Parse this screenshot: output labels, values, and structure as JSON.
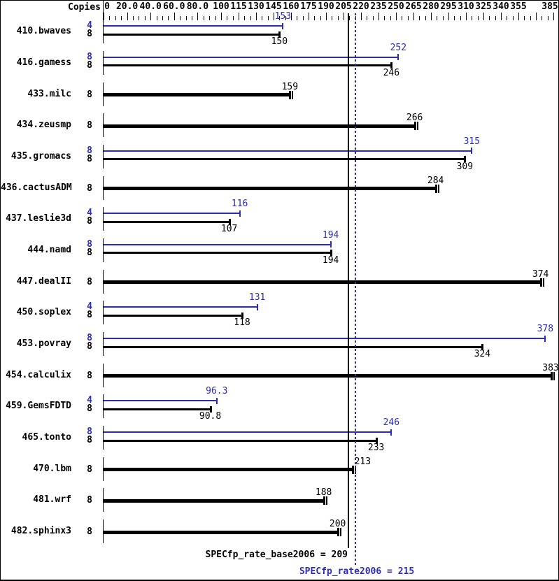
{
  "colors": {
    "peak": "#2d2db4",
    "base": "#000000",
    "background": "#ffffff",
    "border": "#000000"
  },
  "header": {
    "copies_label": "Copies"
  },
  "summary": {
    "base_text": "SPECfp_rate_base2006 = 209",
    "peak_text": "SPECfp_rate2006 = 215"
  },
  "chart_data": {
    "type": "bar",
    "orientation": "horizontal",
    "ylabel": "Copies",
    "x_axis": {
      "range": [
        0,
        385
      ],
      "scale_note": "piecewise: 0-100 compressed, above 100 majors every 15",
      "major_ticks": [
        {
          "v": 0,
          "label": "0"
        },
        {
          "v": 20,
          "label": "20.0"
        },
        {
          "v": 40,
          "label": "40.0"
        },
        {
          "v": 60,
          "label": "60.0"
        },
        {
          "v": 80,
          "label": "80.0"
        },
        {
          "v": 100,
          "label": "100"
        },
        {
          "v": 115,
          "label": "115"
        },
        {
          "v": 130,
          "label": "130"
        },
        {
          "v": 145,
          "label": "145"
        },
        {
          "v": 160,
          "label": "160"
        },
        {
          "v": 175,
          "label": "175"
        },
        {
          "v": 190,
          "label": "190"
        },
        {
          "v": 205,
          "label": "205"
        },
        {
          "v": 220,
          "label": "220"
        },
        {
          "v": 235,
          "label": "235"
        },
        {
          "v": 250,
          "label": "250"
        },
        {
          "v": 265,
          "label": "265"
        },
        {
          "v": 280,
          "label": "280"
        },
        {
          "v": 295,
          "label": "295"
        },
        {
          "v": 310,
          "label": "310"
        },
        {
          "v": 325,
          "label": "325"
        },
        {
          "v": 340,
          "label": "340"
        },
        {
          "v": 355,
          "label": "355"
        },
        {
          "v": 370,
          "label": ""
        },
        {
          "v": 385,
          "label": "385"
        }
      ],
      "minor_tick_step": 5
    },
    "reference_lines": [
      {
        "name": "SPECfp_rate_base2006",
        "value": 209,
        "style": "solid",
        "color": "#000000"
      },
      {
        "name": "SPECfp_rate2006",
        "value": 215,
        "style": "dotted",
        "color": "#2d2db4"
      }
    ],
    "means": {
      "SPECfp_rate_base2006": 209,
      "SPECfp_rate2006": 215
    },
    "rows": [
      {
        "name": "410.bwaves",
        "bars": [
          {
            "kind": "peak",
            "copies": "4",
            "value": 153,
            "label": "153"
          },
          {
            "kind": "base",
            "copies": "8",
            "value": 150,
            "label": "150"
          }
        ]
      },
      {
        "name": "416.gamess",
        "bars": [
          {
            "kind": "peak",
            "copies": "8",
            "value": 252,
            "label": "252"
          },
          {
            "kind": "base",
            "copies": "8",
            "value": 246,
            "label": "246"
          }
        ]
      },
      {
        "name": "433.milc",
        "bars": [
          {
            "kind": "single",
            "copies": "8",
            "value": 159,
            "label": "159"
          }
        ]
      },
      {
        "name": "434.zeusmp",
        "bars": [
          {
            "kind": "single",
            "copies": "8",
            "value": 266,
            "label": "266"
          }
        ]
      },
      {
        "name": "435.gromacs",
        "bars": [
          {
            "kind": "peak",
            "copies": "8",
            "value": 315,
            "label": "315"
          },
          {
            "kind": "base",
            "copies": "8",
            "value": 309,
            "label": "309"
          }
        ]
      },
      {
        "name": "436.cactusADM",
        "bars": [
          {
            "kind": "single",
            "copies": "8",
            "value": 284,
            "label": "284"
          }
        ]
      },
      {
        "name": "437.leslie3d",
        "bars": [
          {
            "kind": "peak",
            "copies": "4",
            "value": 116,
            "label": "116"
          },
          {
            "kind": "base",
            "copies": "8",
            "value": 107,
            "label": "107"
          }
        ]
      },
      {
        "name": "444.namd",
        "bars": [
          {
            "kind": "peak",
            "copies": "8",
            "value": 194,
            "label": "194"
          },
          {
            "kind": "base",
            "copies": "8",
            "value": 194,
            "label": "194"
          }
        ]
      },
      {
        "name": "447.dealII",
        "bars": [
          {
            "kind": "single",
            "copies": "8",
            "value": 374,
            "label": "374"
          }
        ]
      },
      {
        "name": "450.soplex",
        "bars": [
          {
            "kind": "peak",
            "copies": "4",
            "value": 131,
            "label": "131"
          },
          {
            "kind": "base",
            "copies": "8",
            "value": 118,
            "label": "118"
          }
        ]
      },
      {
        "name": "453.povray",
        "bars": [
          {
            "kind": "peak",
            "copies": "8",
            "value": 378,
            "label": "378"
          },
          {
            "kind": "base",
            "copies": "8",
            "value": 324,
            "label": "324"
          }
        ]
      },
      {
        "name": "454.calculix",
        "bars": [
          {
            "kind": "single",
            "copies": "8",
            "value": 383,
            "label": "383"
          }
        ]
      },
      {
        "name": "459.GemsFDTD",
        "bars": [
          {
            "kind": "peak",
            "copies": "4",
            "value": 96.3,
            "label": "96.3"
          },
          {
            "kind": "base",
            "copies": "8",
            "value": 90.8,
            "label": "90.8"
          }
        ]
      },
      {
        "name": "465.tonto",
        "bars": [
          {
            "kind": "peak",
            "copies": "8",
            "value": 246,
            "label": "246"
          },
          {
            "kind": "base",
            "copies": "8",
            "value": 233,
            "label": "233"
          }
        ]
      },
      {
        "name": "470.lbm",
        "bars": [
          {
            "kind": "single",
            "copies": "8",
            "value": 213,
            "label": "213",
            "label_dx": 14
          }
        ]
      },
      {
        "name": "481.wrf",
        "bars": [
          {
            "kind": "single",
            "copies": "8",
            "value": 188,
            "label": "188"
          }
        ]
      },
      {
        "name": "482.sphinx3",
        "bars": [
          {
            "kind": "single",
            "copies": "8",
            "value": 200,
            "label": "200"
          }
        ]
      }
    ]
  }
}
